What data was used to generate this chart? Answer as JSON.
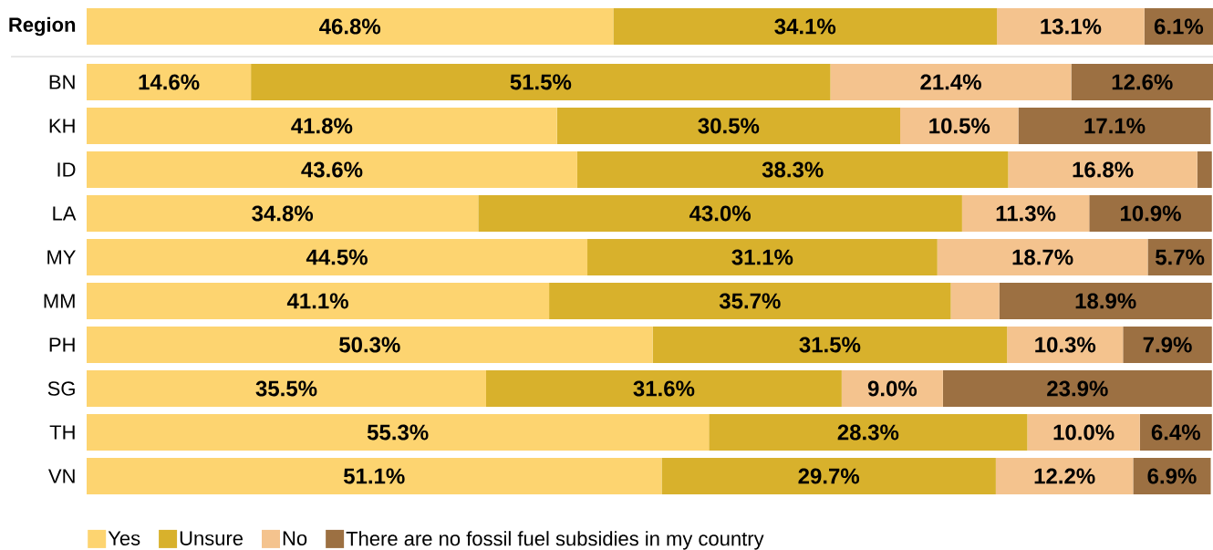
{
  "chart_data": {
    "type": "bar",
    "orientation": "horizontal",
    "stacked": true,
    "legend": "bottom",
    "tick_labels": "y",
    "xlim": [
      0,
      100.1
    ],
    "categories": [
      "Region",
      "BN",
      "KH",
      "ID",
      "LA",
      "MY",
      "MM",
      "PH",
      "SG",
      "TH",
      "VN"
    ],
    "series": [
      {
        "name": "Yes",
        "color": "#fdd470",
        "values": [
          46.8,
          14.6,
          41.8,
          43.6,
          34.8,
          44.5,
          41.1,
          50.3,
          35.5,
          55.3,
          51.1
        ],
        "value_labels": [
          "46.8%",
          "14.6%",
          "41.8%",
          "43.6%",
          "34.8%",
          "44.5%",
          "41.1%",
          "50.3%",
          "35.5%",
          "55.3%",
          "51.1%"
        ]
      },
      {
        "name": "Unsure",
        "color": "#d8b12c",
        "values": [
          34.1,
          51.5,
          30.5,
          38.3,
          43.0,
          31.1,
          35.7,
          31.5,
          31.6,
          28.3,
          29.7
        ],
        "value_labels": [
          "34.1%",
          "51.5%",
          "30.5%",
          "38.3%",
          "43.0%",
          "31.1%",
          "35.7%",
          "31.5%",
          "31.6%",
          "28.3%",
          "29.7%"
        ]
      },
      {
        "name": "No",
        "color": "#f4c38e",
        "values": [
          13.1,
          21.4,
          10.5,
          16.8,
          11.3,
          18.7,
          4.3,
          10.3,
          9.0,
          10.0,
          12.2
        ],
        "value_labels": [
          "13.1%",
          "21.4%",
          "10.5%",
          "16.8%",
          "11.3%",
          "18.7%",
          null,
          "10.3%",
          "9.0%",
          "10.0%",
          "12.2%"
        ]
      },
      {
        "name": "There are no fossil fuel subsidies in my country",
        "color": "#9c7042",
        "values": [
          6.1,
          12.6,
          17.1,
          1.3,
          10.9,
          5.7,
          18.9,
          7.9,
          23.9,
          6.4,
          6.9
        ],
        "value_labels": [
          "6.1%",
          "12.6%",
          "17.1%",
          null,
          "10.9%",
          "5.7%",
          "18.9%",
          "7.9%",
          "23.9%",
          "6.4%",
          "6.9%"
        ]
      }
    ]
  }
}
